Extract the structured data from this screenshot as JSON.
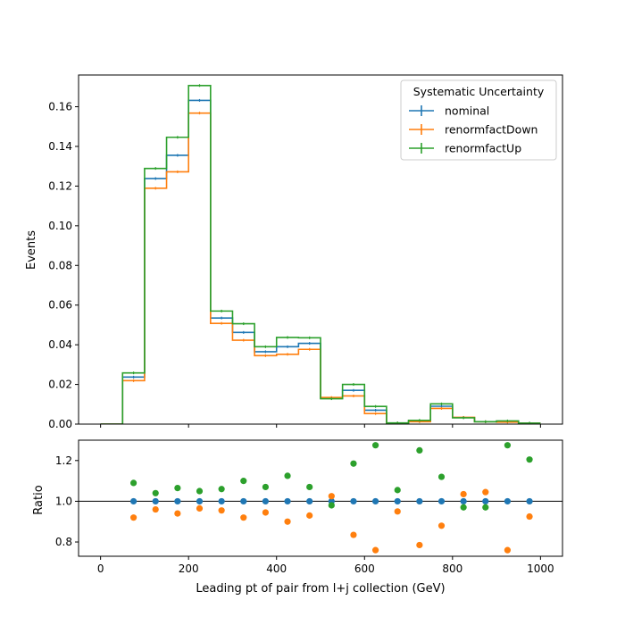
{
  "chart_data": {
    "type": "step-histogram-with-ratio",
    "xlabel": "Leading pt of pair from l+j collection (GeV)",
    "xlim": [
      -50,
      1050
    ],
    "xticks": [
      0,
      200,
      400,
      600,
      800,
      1000
    ],
    "bin_edges": [
      0,
      50,
      100,
      150,
      200,
      250,
      300,
      350,
      400,
      450,
      500,
      550,
      600,
      650,
      700,
      750,
      800,
      850,
      900,
      950,
      1000
    ],
    "bin_centers": [
      25,
      75,
      125,
      175,
      225,
      275,
      325,
      375,
      425,
      475,
      525,
      575,
      625,
      675,
      725,
      775,
      825,
      875,
      925,
      975
    ],
    "top": {
      "ylabel": "Events",
      "ylim": [
        0,
        0.176
      ],
      "yticks": [
        0.0,
        0.02,
        0.04,
        0.06,
        0.08,
        0.1,
        0.12,
        0.14,
        0.16
      ],
      "ytick_labels": [
        "0.00",
        "0.02",
        "0.04",
        "0.06",
        "0.08",
        "0.10",
        "0.12",
        "0.14",
        "0.16"
      ],
      "legend_title": "Systematic Uncertainty",
      "legend_position": "top-right",
      "series": [
        {
          "name": "nominal",
          "color": "#1f77b4",
          "values": [
            0,
            0.0237,
            0.1238,
            0.1355,
            0.1632,
            0.0535,
            0.0462,
            0.0365,
            0.039,
            0.0407,
            0.013,
            0.017,
            0.007,
            0.0005,
            0.0015,
            0.009,
            0.0033,
            0.0012,
            0.0013,
            0.0004
          ]
        },
        {
          "name": "renormfactDown",
          "color": "#ff7f0e",
          "values": [
            0,
            0.0219,
            0.1189,
            0.1272,
            0.1568,
            0.0508,
            0.0423,
            0.0345,
            0.0352,
            0.0377,
            0.0134,
            0.0142,
            0.0053,
            0.0005,
            0.0012,
            0.0079,
            0.0034,
            0.0012,
            0.001,
            0.0004
          ]
        },
        {
          "name": "renormfactUp",
          "color": "#2ca02c",
          "values": [
            0,
            0.0258,
            0.1289,
            0.1446,
            0.1707,
            0.057,
            0.0506,
            0.039,
            0.0437,
            0.0435,
            0.0128,
            0.02,
            0.0089,
            0.0006,
            0.0019,
            0.0102,
            0.0032,
            0.0012,
            0.0016,
            0.0005
          ]
        }
      ]
    },
    "bottom": {
      "ylabel": "Ratio",
      "ylim": [
        0.73,
        1.3
      ],
      "yticks": [
        0.8,
        1.0,
        1.2
      ],
      "ytick_labels": [
        "0.8",
        "1.0",
        "1.2"
      ],
      "reference_line": 1.0,
      "ratio_x": [
        75,
        125,
        175,
        225,
        275,
        325,
        375,
        425,
        475,
        525,
        575,
        625,
        675,
        725,
        775,
        825,
        875,
        925,
        975
      ],
      "series": [
        {
          "name": "nominal",
          "color": "#1f77b4",
          "values": [
            1.0,
            1.0,
            1.0,
            1.0,
            1.0,
            1.0,
            1.0,
            1.0,
            1.0,
            1.0,
            1.0,
            1.0,
            1.0,
            1.0,
            1.0,
            1.0,
            1.0,
            1.0,
            1.0
          ]
        },
        {
          "name": "renormfactDown",
          "color": "#ff7f0e",
          "values": [
            0.92,
            0.96,
            0.94,
            0.965,
            0.955,
            0.92,
            0.945,
            0.9,
            0.93,
            1.025,
            0.835,
            0.76,
            0.95,
            0.785,
            0.88,
            1.035,
            1.045,
            0.76,
            0.925
          ]
        },
        {
          "name": "renormfactUp",
          "color": "#2ca02c",
          "values": [
            1.09,
            1.04,
            1.065,
            1.05,
            1.06,
            1.1,
            1.07,
            1.125,
            1.07,
            0.98,
            1.185,
            1.275,
            1.055,
            1.25,
            1.12,
            0.97,
            0.97,
            1.275,
            1.205
          ]
        }
      ]
    }
  }
}
